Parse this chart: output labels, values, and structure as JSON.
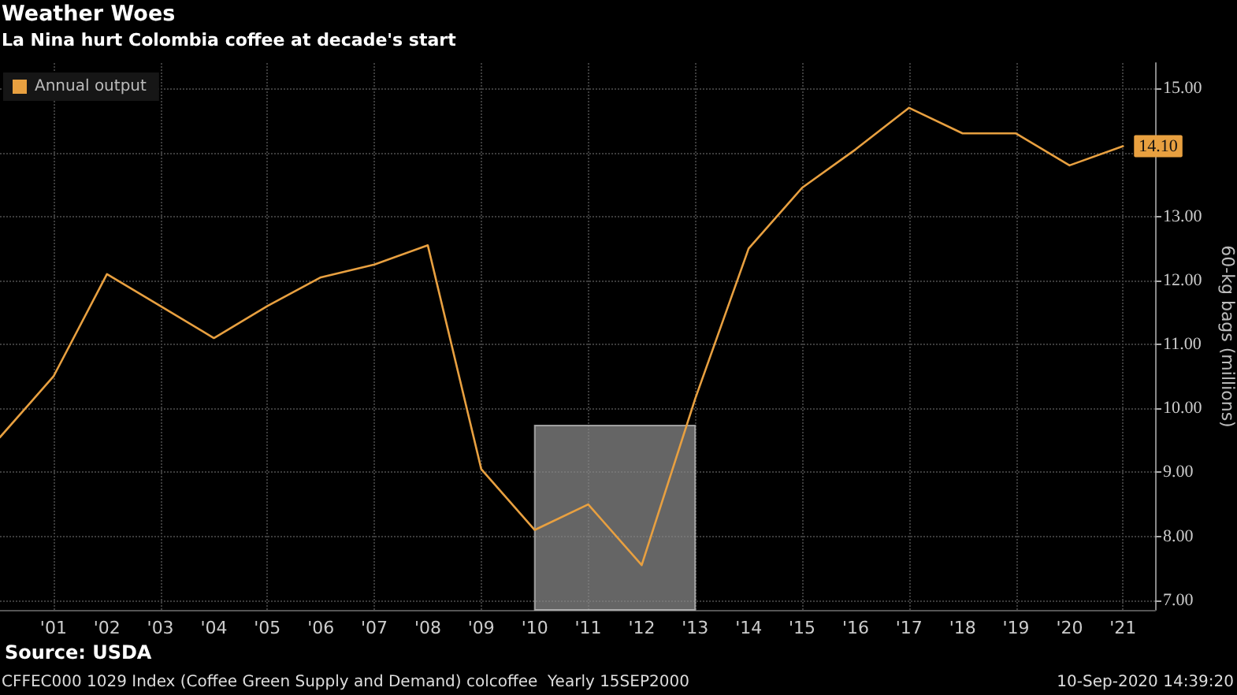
{
  "chart_data": {
    "type": "line",
    "title": "Weather Woes",
    "subtitle": "La Nina hurt Colombia coffee at decade's start",
    "ylabel": "60-kg bags (millions)",
    "x": [
      2000,
      2001,
      2002,
      2003,
      2004,
      2005,
      2006,
      2007,
      2008,
      2009,
      2010,
      2011,
      2012,
      2013,
      2014,
      2015,
      2016,
      2017,
      2018,
      2019,
      2020,
      2021
    ],
    "series": [
      {
        "name": "Annual output",
        "color": "#e8a040",
        "values": [
          9.55,
          10.5,
          12.1,
          11.6,
          11.1,
          11.6,
          12.05,
          12.25,
          12.55,
          9.05,
          8.1,
          8.5,
          7.55,
          10.15,
          12.5,
          13.45,
          14.05,
          14.7,
          14.3,
          14.3,
          13.8,
          14.1
        ],
        "value_labels": [
          null,
          null,
          null,
          null,
          null,
          null,
          null,
          null,
          null,
          null,
          null,
          null,
          null,
          null,
          null,
          null,
          null,
          null,
          null,
          null,
          null,
          "14.10"
        ]
      }
    ],
    "xlim": [
      2000,
      2021.6
    ],
    "xticks": [
      {
        "value": 2001,
        "label": "'01"
      },
      {
        "value": 2002,
        "label": "'02"
      },
      {
        "value": 2003,
        "label": "'03"
      },
      {
        "value": 2004,
        "label": "'04"
      },
      {
        "value": 2005,
        "label": "'05"
      },
      {
        "value": 2006,
        "label": "'06"
      },
      {
        "value": 2007,
        "label": "'07"
      },
      {
        "value": 2008,
        "label": "'08"
      },
      {
        "value": 2009,
        "label": "'09"
      },
      {
        "value": 2010,
        "label": "'10"
      },
      {
        "value": 2011,
        "label": "'11"
      },
      {
        "value": 2012,
        "label": "'12"
      },
      {
        "value": 2013,
        "label": "'13"
      },
      {
        "value": 2014,
        "label": "'14"
      },
      {
        "value": 2015,
        "label": "'15"
      },
      {
        "value": 2016,
        "label": "'16"
      },
      {
        "value": 2017,
        "label": "'17"
      },
      {
        "value": 2018,
        "label": "'18"
      },
      {
        "value": 2019,
        "label": "'19"
      },
      {
        "value": 2020,
        "label": "'20"
      },
      {
        "value": 2021,
        "label": "'21"
      }
    ],
    "ylim": [
      6.85,
      15.4
    ],
    "yticks": [
      {
        "value": 7,
        "label": "7.00"
      },
      {
        "value": 8,
        "label": "8.00"
      },
      {
        "value": 9,
        "label": "9.00"
      },
      {
        "value": 10,
        "label": "10.00"
      },
      {
        "value": 11,
        "label": "11.00"
      },
      {
        "value": 12,
        "label": "12.00"
      },
      {
        "value": 13,
        "label": "13.00"
      },
      {
        "value": 14,
        "label": null
      },
      {
        "value": 15,
        "label": "15.00"
      }
    ],
    "bands": [
      {
        "axis": "x",
        "from": 2010,
        "to": 2013,
        "color": "#8c8c8c"
      }
    ],
    "grid": true,
    "legend": "top left",
    "annotations": [
      "Source: USDA",
      "CFFEC000 1029 Index (Coffee Green Supply and Demand) colcoffee  Yearly 15SEP2000",
      "10-Sep-2020 14:39:20"
    ]
  }
}
